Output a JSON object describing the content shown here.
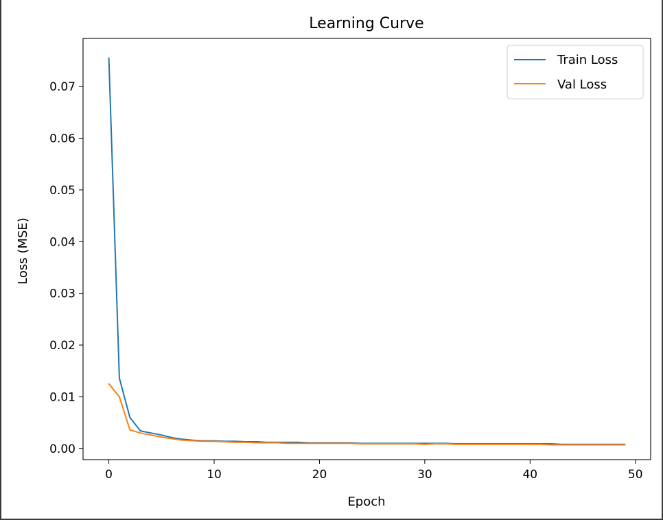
{
  "chart_data": {
    "type": "line",
    "title": "Learning Curve",
    "xlabel": "Epoch",
    "ylabel": "Loss (MSE)",
    "xlim": [
      -2.45,
      51.45
    ],
    "ylim": [
      -0.00215,
      0.0793
    ],
    "xticks": [
      0,
      10,
      20,
      30,
      40,
      50
    ],
    "yticks": [
      0.0,
      0.01,
      0.02,
      0.03,
      0.04,
      0.05,
      0.06,
      0.07
    ],
    "ytick_labels": [
      "0.00",
      "0.01",
      "0.02",
      "0.03",
      "0.04",
      "0.05",
      "0.06",
      "0.07"
    ],
    "grid": false,
    "legend_position": "top-right",
    "x": [
      0,
      1,
      2,
      3,
      4,
      5,
      6,
      7,
      8,
      9,
      10,
      11,
      12,
      13,
      14,
      15,
      16,
      17,
      18,
      19,
      20,
      21,
      22,
      23,
      24,
      25,
      26,
      27,
      28,
      29,
      30,
      31,
      32,
      33,
      34,
      35,
      36,
      37,
      38,
      39,
      40,
      41,
      42,
      43,
      44,
      45,
      46,
      47,
      48,
      49
    ],
    "series": [
      {
        "name": "Train Loss",
        "color": "#1f77b4",
        "values": [
          0.0755,
          0.0136,
          0.006,
          0.0034,
          0.003,
          0.0026,
          0.0021,
          0.0018,
          0.0016,
          0.0015,
          0.0015,
          0.0014,
          0.0014,
          0.0013,
          0.0013,
          0.0012,
          0.0012,
          0.0012,
          0.0012,
          0.0011,
          0.0011,
          0.0011,
          0.0011,
          0.0011,
          0.001,
          0.001,
          0.001,
          0.001,
          0.001,
          0.001,
          0.001,
          0.001,
          0.001,
          0.0009,
          0.0009,
          0.0009,
          0.0009,
          0.0009,
          0.0009,
          0.0009,
          0.0009,
          0.0009,
          0.0009,
          0.0008,
          0.0008,
          0.0008,
          0.0008,
          0.0008,
          0.0008,
          0.0008
        ]
      },
      {
        "name": "Val Loss",
        "color": "#ff7f0e",
        "values": [
          0.0125,
          0.01,
          0.0036,
          0.003,
          0.0026,
          0.0022,
          0.0019,
          0.0016,
          0.0015,
          0.0014,
          0.0014,
          0.0013,
          0.0012,
          0.0012,
          0.0011,
          0.0011,
          0.0011,
          0.001,
          0.001,
          0.001,
          0.001,
          0.001,
          0.001,
          0.001,
          0.0009,
          0.0009,
          0.0009,
          0.0009,
          0.0009,
          0.0009,
          0.0008,
          0.0009,
          0.0009,
          0.0008,
          0.0008,
          0.0008,
          0.0008,
          0.0008,
          0.0008,
          0.0008,
          0.0008,
          0.0008,
          0.0007,
          0.0007,
          0.0007,
          0.0007,
          0.0007,
          0.0007,
          0.0007,
          0.0007
        ]
      }
    ]
  }
}
